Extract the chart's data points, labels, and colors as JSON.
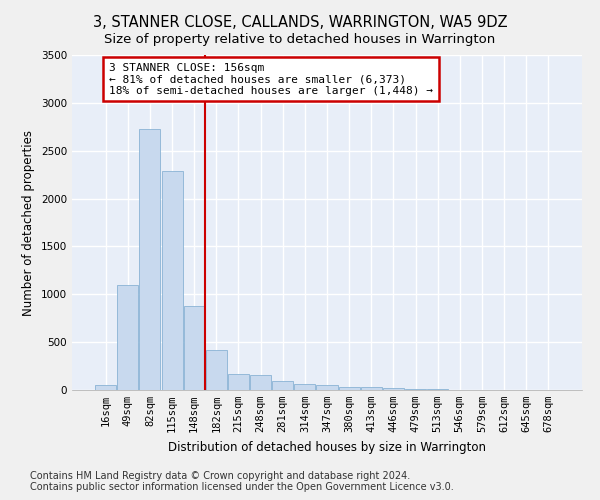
{
  "title": "3, STANNER CLOSE, CALLANDS, WARRINGTON, WA5 9DZ",
  "subtitle": "Size of property relative to detached houses in Warrington",
  "xlabel": "Distribution of detached houses by size in Warrington",
  "ylabel": "Number of detached properties",
  "footnote1": "Contains HM Land Registry data © Crown copyright and database right 2024.",
  "footnote2": "Contains public sector information licensed under the Open Government Licence v3.0.",
  "bar_labels": [
    "16sqm",
    "49sqm",
    "82sqm",
    "115sqm",
    "148sqm",
    "182sqm",
    "215sqm",
    "248sqm",
    "281sqm",
    "314sqm",
    "347sqm",
    "380sqm",
    "413sqm",
    "446sqm",
    "479sqm",
    "513sqm",
    "546sqm",
    "579sqm",
    "612sqm",
    "645sqm",
    "678sqm"
  ],
  "bar_values": [
    50,
    1100,
    2730,
    2290,
    880,
    420,
    165,
    155,
    90,
    60,
    50,
    35,
    30,
    20,
    10,
    8,
    5,
    5,
    3,
    2,
    2
  ],
  "bar_color": "#c8d9ee",
  "bar_edge_color": "#8ab3d5",
  "vline_x_index": 4,
  "annotation_text_line1": "3 STANNER CLOSE: 156sqm",
  "annotation_text_line2": "← 81% of detached houses are smaller (6,373)",
  "annotation_text_line3": "18% of semi-detached houses are larger (1,448) →",
  "annotation_box_color": "#ffffff",
  "annotation_box_edge": "#cc0000",
  "vline_color": "#cc0000",
  "ylim": [
    0,
    3500
  ],
  "yticks": [
    0,
    500,
    1000,
    1500,
    2000,
    2500,
    3000,
    3500
  ],
  "bg_color": "#e8eef8",
  "grid_color": "#ffffff",
  "fig_bg_color": "#f0f0f0",
  "title_fontsize": 10.5,
  "subtitle_fontsize": 9.5,
  "axis_label_fontsize": 8.5,
  "tick_fontsize": 7.5,
  "annotation_fontsize": 8,
  "footnote_fontsize": 7
}
